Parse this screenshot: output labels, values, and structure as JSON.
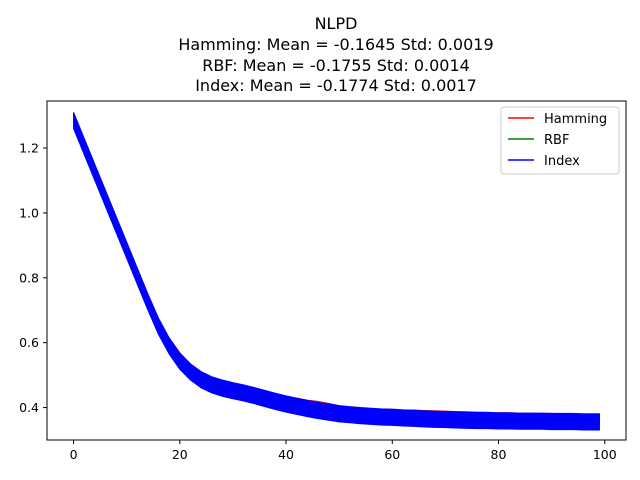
{
  "chart_data": {
    "type": "line",
    "title_lines": [
      "NLPD",
      "Hamming: Mean = -0.1645 Std: 0.0019",
      "RBF: Mean = -0.1755 Std: 0.0014",
      "Index: Mean = -0.1774 Std: 0.0017"
    ],
    "xlabel": "",
    "ylabel": "",
    "xlim": [
      -5,
      104
    ],
    "ylim": [
      0.3,
      1.345
    ],
    "xticks": [
      0,
      20,
      40,
      60,
      80,
      100
    ],
    "yticks": [
      0.4,
      0.6,
      0.8,
      1.0,
      1.2
    ],
    "xtick_labels": [
      "0",
      "20",
      "40",
      "60",
      "80",
      "100"
    ],
    "ytick_labels": [
      "0.4",
      "0.6",
      "0.8",
      "1.0",
      "1.2"
    ],
    "grid": false,
    "legend_position": "top-right",
    "x": [
      0,
      2,
      4,
      6,
      8,
      10,
      12,
      14,
      16,
      18,
      20,
      22,
      24,
      26,
      28,
      30,
      32,
      34,
      36,
      38,
      40,
      42,
      44,
      46,
      48,
      50,
      52,
      54,
      56,
      58,
      60,
      62,
      64,
      66,
      68,
      70,
      72,
      74,
      76,
      78,
      80,
      82,
      84,
      86,
      88,
      90,
      92,
      94,
      96,
      98,
      99
    ],
    "series": [
      {
        "name": "Hamming",
        "color": "#ff0000",
        "band_width": 0.018,
        "values": [
          1.3,
          1.22,
          1.14,
          1.06,
          0.98,
          0.9,
          0.82,
          0.74,
          0.665,
          0.605,
          0.56,
          0.525,
          0.498,
          0.48,
          0.469,
          0.462,
          0.456,
          0.448,
          0.44,
          0.432,
          0.425,
          0.42,
          0.414,
          0.41,
          0.404,
          0.397,
          0.392,
          0.389,
          0.387,
          0.386,
          0.385,
          0.384,
          0.383,
          0.382,
          0.381,
          0.38,
          0.379,
          0.378,
          0.377,
          0.376,
          0.375,
          0.375,
          0.374,
          0.374,
          0.373,
          0.373,
          0.372,
          0.372,
          0.371,
          0.371,
          0.37
        ]
      },
      {
        "name": "RBF",
        "color": "#008000",
        "band_width": 0.018,
        "values": [
          1.28,
          1.2,
          1.12,
          1.04,
          0.96,
          0.88,
          0.8,
          0.72,
          0.645,
          0.585,
          0.54,
          0.508,
          0.484,
          0.468,
          0.457,
          0.448,
          0.44,
          0.43,
          0.42,
          0.411,
          0.404,
          0.399,
          0.394,
          0.389,
          0.384,
          0.379,
          0.376,
          0.374,
          0.372,
          0.371,
          0.37,
          0.369,
          0.368,
          0.366,
          0.365,
          0.364,
          0.363,
          0.362,
          0.361,
          0.36,
          0.36,
          0.359,
          0.359,
          0.358,
          0.358,
          0.358,
          0.358,
          0.357,
          0.357,
          0.357,
          0.357
        ]
      },
      {
        "name": "Index",
        "color": "#0000ff",
        "band_width": 0.05,
        "values": [
          1.285,
          1.205,
          1.125,
          1.045,
          0.965,
          0.885,
          0.805,
          0.725,
          0.65,
          0.59,
          0.543,
          0.51,
          0.486,
          0.47,
          0.46,
          0.452,
          0.445,
          0.437,
          0.428,
          0.419,
          0.411,
          0.404,
          0.397,
          0.391,
          0.386,
          0.381,
          0.378,
          0.375,
          0.373,
          0.371,
          0.37,
          0.368,
          0.367,
          0.365,
          0.364,
          0.363,
          0.362,
          0.361,
          0.36,
          0.36,
          0.359,
          0.359,
          0.358,
          0.358,
          0.358,
          0.357,
          0.357,
          0.357,
          0.356,
          0.356,
          0.356
        ]
      }
    ]
  }
}
